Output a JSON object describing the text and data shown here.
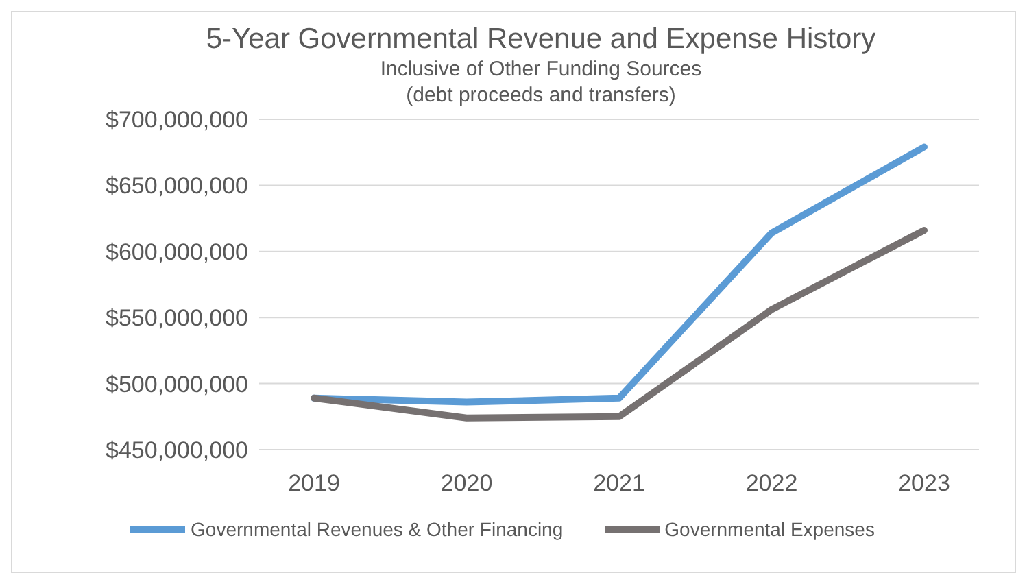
{
  "chart_data": {
    "type": "line",
    "title": "5-Year Governmental Revenue and Expense History",
    "subtitle": "Inclusive of Other Funding Sources\n(debt proceeds and transfers)",
    "categories": [
      "2019",
      "2020",
      "2021",
      "2022",
      "2023"
    ],
    "series": [
      {
        "name": "Governmental Revenues & Other Financing",
        "color": "#5b9bd5",
        "values": [
          489000000,
          486000000,
          489000000,
          614000000,
          679000000
        ]
      },
      {
        "name": "Governmental Expenses",
        "color": "#767171",
        "values": [
          489000000,
          474000000,
          475000000,
          556000000,
          616000000
        ]
      }
    ],
    "ylim": [
      450000000,
      700000000
    ],
    "yticks": [
      {
        "value": 450000000,
        "label": "$450,000,000"
      },
      {
        "value": 500000000,
        "label": "$500,000,000"
      },
      {
        "value": 550000000,
        "label": "$550,000,000"
      },
      {
        "value": 600000000,
        "label": "$600,000,000"
      },
      {
        "value": 650000000,
        "label": "$650,000,000"
      },
      {
        "value": 700000000,
        "label": "$700,000,000"
      }
    ],
    "grid": "y",
    "legend": "bottom",
    "marker": "none",
    "line_style": "solid"
  }
}
